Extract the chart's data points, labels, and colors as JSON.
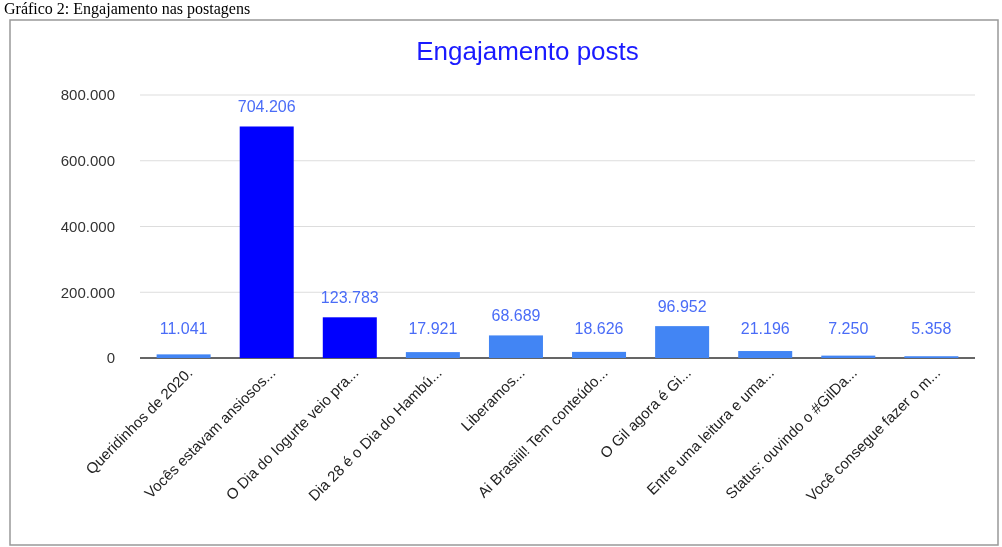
{
  "chart_data": {
    "type": "bar",
    "title": "Engajamento posts",
    "annotations": [
      "Gráfico 2: Engajamento nas postagens"
    ],
    "categories": [
      "Queridinhos de 2020.",
      "Vocês estavam ansiosos...",
      "O Dia do Iogurte veio pra...",
      "Dia 28 é o Dia do Hambú...",
      "Liberamos...",
      "Ai Brasiiil! Tem conteúdo...",
      "O Gil agora é Gi...",
      "Entre uma leitura e uma...",
      "Status: ouvindo o #GilDa...",
      "Você consegue fazer o m..."
    ],
    "values": [
      11041,
      704206,
      123783,
      17921,
      68689,
      18626,
      96952,
      21196,
      7250,
      5358
    ],
    "colors": [
      "#4285f4",
      "#0000ff",
      "#0000ff",
      "#4285f4",
      "#4285f4",
      "#4285f4",
      "#4285f4",
      "#4285f4",
      "#4285f4",
      "#4285f4"
    ],
    "ylim": [
      0,
      800000
    ],
    "yticks": [
      0,
      {
        "value": 200000,
        "label": "200.000"
      },
      {
        "value": 400000,
        "label": "400.000"
      },
      {
        "value": 600000,
        "label": "600.000"
      },
      {
        "value": 800000,
        "label": "800.000"
      }
    ],
    "value_labels": [
      "11.041",
      "704.206",
      "123.783",
      "17.921",
      "68.689",
      "18.626",
      "96.952",
      "21.196",
      "7.250",
      "5.358"
    ],
    "grid": "y"
  }
}
